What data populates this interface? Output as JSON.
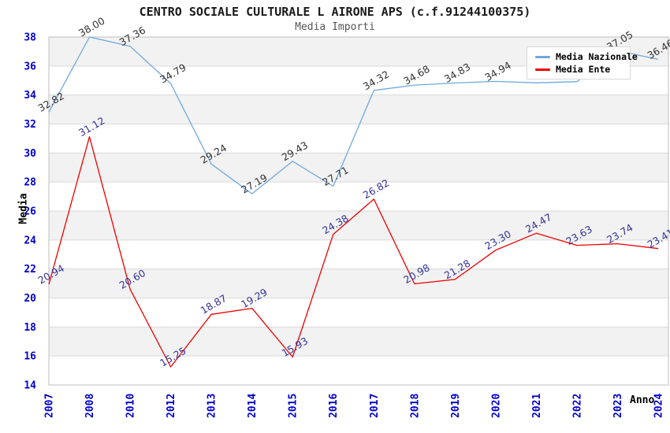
{
  "chart_data": {
    "type": "line",
    "title": "CENTRO SOCIALE CULTURALE L AIRONE APS (c.f.91244100375)",
    "subtitle": "Media Importi",
    "xlabel": "Anno",
    "ylabel": "Media",
    "ylim": [
      14,
      38
    ],
    "yticks": [
      14,
      16,
      18,
      20,
      22,
      24,
      26,
      28,
      30,
      32,
      34,
      36,
      38
    ],
    "categories": [
      "2007",
      "2008",
      "2010",
      "2012",
      "2013",
      "2014",
      "2015",
      "2016",
      "2017",
      "2018",
      "2019",
      "2020",
      "2021",
      "2022",
      "2023",
      "2024"
    ],
    "series": [
      {
        "name": "Media Nazionale",
        "color": "#6fa8dc",
        "label_color": "#333333",
        "values": [
          32.82,
          38.0,
          37.36,
          34.79,
          29.24,
          27.19,
          29.43,
          27.71,
          34.32,
          34.68,
          34.83,
          34.94,
          34.84,
          34.92,
          37.05,
          36.46
        ],
        "labels": [
          "32.82",
          "38.00",
          "37.36",
          "34.79",
          "29.24",
          "27.19",
          "29.43",
          "27.71",
          "34.32",
          "34.68",
          "34.83",
          "34.94",
          "",
          "",
          "37.05",
          "36.46"
        ]
      },
      {
        "name": "Media Ente",
        "color": "#ee0000",
        "label_color": "#333399",
        "values": [
          20.94,
          31.12,
          20.6,
          15.25,
          18.87,
          19.29,
          15.93,
          24.38,
          26.82,
          20.98,
          21.28,
          23.3,
          24.47,
          23.63,
          23.74,
          23.41
        ],
        "labels": [
          "20.94",
          "31.12",
          "20.60",
          "15.25",
          "18.87",
          "19.29",
          "15.93",
          "24.38",
          "26.82",
          "20.98",
          "21.28",
          "23.30",
          "24.47",
          "23.63",
          "23.74",
          "23.41"
        ]
      }
    ],
    "legend": {
      "position": "top-right",
      "entries": [
        "Media Nazionale",
        "Media Ente"
      ]
    },
    "grid": "horizontal-bands",
    "styles": {
      "tick_label_color": "#0000cc",
      "band_gray": "#f2f2f2",
      "band_white": "#ffffff",
      "gridline_color": "#d9d9d9",
      "plot_border_color": "#bfbfbf",
      "background": "#ffffff"
    }
  }
}
